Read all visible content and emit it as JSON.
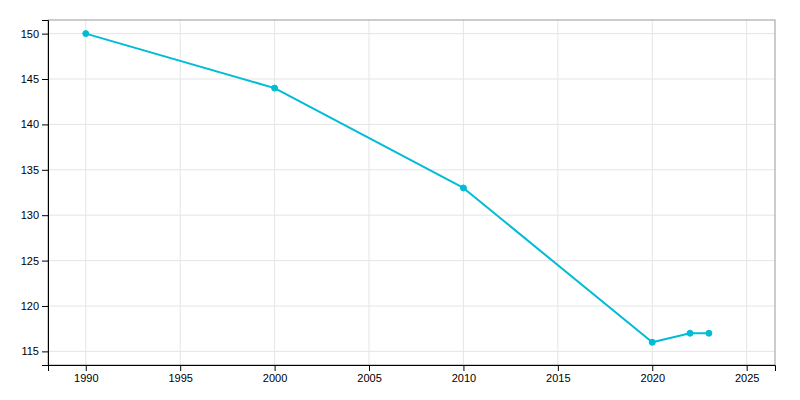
{
  "chart_data": {
    "type": "line",
    "x": [
      1990,
      2000,
      2010,
      2020,
      2022,
      2023
    ],
    "values": [
      150,
      144,
      133,
      116,
      117,
      117
    ],
    "color": "#00bcd4",
    "marker": "circle",
    "xlim": [
      1988,
      2026.5
    ],
    "ylim": [
      113.5,
      151.5
    ],
    "xticks": [
      1990,
      1995,
      2000,
      2005,
      2010,
      2015,
      2020,
      2025
    ],
    "yticks": [
      115,
      120,
      125,
      130,
      135,
      140,
      145,
      150
    ],
    "grid": true
  }
}
